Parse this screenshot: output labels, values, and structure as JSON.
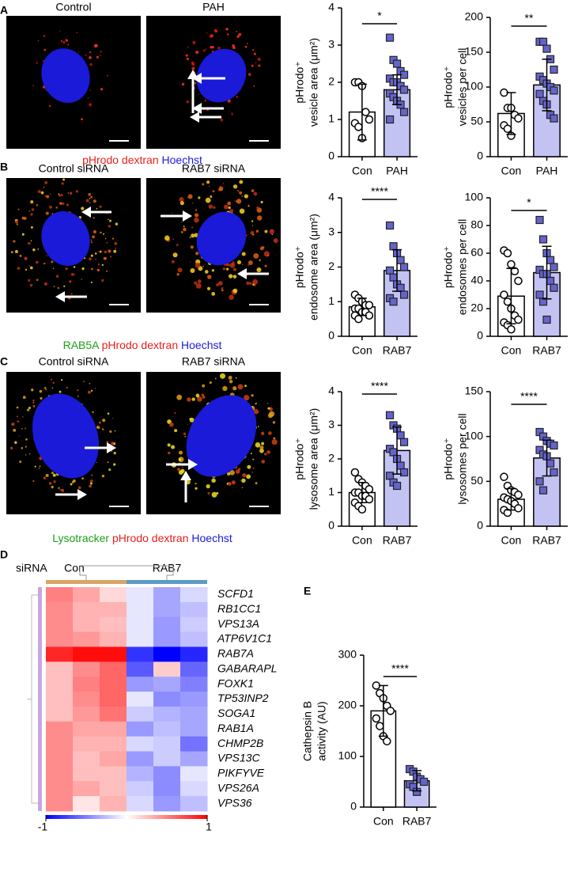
{
  "panels": [
    {
      "label": "A",
      "images": [
        "Control",
        "PAH"
      ],
      "caption": [
        {
          "text": "pHrodo dextran",
          "color": "#e8201c"
        },
        {
          "text": "Hoechst",
          "color": "#1a1ae0"
        }
      ]
    },
    {
      "label": "B",
      "images": [
        "Control siRNA",
        "RAB7 siRNA"
      ],
      "caption": [
        {
          "text": "RAB5A",
          "color": "#1aa01a"
        },
        {
          "text": "pHrodo dextran",
          "color": "#e8201c"
        },
        {
          "text": "Hoechst",
          "color": "#1a1ae0"
        }
      ]
    },
    {
      "label": "C",
      "images": [
        "Control siRNA",
        "RAB7 siRNA"
      ],
      "caption": [
        {
          "text": "Lysotracker",
          "color": "#1aa01a"
        },
        {
          "text": "pHrodo dextran",
          "color": "#e8201c"
        },
        {
          "text": "Hoechst",
          "color": "#1a1ae0"
        }
      ]
    },
    {
      "label": "D"
    },
    {
      "label": "E"
    }
  ],
  "chart_data": [
    {
      "type": "bar",
      "ylabel": [
        "pHrodo⁺",
        "vesicle area (μm²)"
      ],
      "categories": [
        "Con",
        "PAH"
      ],
      "values": [
        1.2,
        1.8
      ],
      "errors": [
        0.75,
        0.4
      ],
      "colors": [
        "#ffffff",
        "#c3c3f3"
      ],
      "markers": [
        "circle",
        "square"
      ],
      "points": [
        [
          2.0,
          2.0,
          1.9,
          1.2,
          1.0,
          0.9,
          0.8,
          0.5
        ],
        [
          3.2,
          2.6,
          2.5,
          2.3,
          2.2,
          2.1,
          2.0,
          2.0,
          1.9,
          1.8,
          1.7,
          1.6,
          1.5,
          1.4,
          1.2,
          1.0
        ]
      ],
      "significance": "*",
      "ylim": [
        0,
        4
      ],
      "yticks": [
        0,
        1,
        2,
        3,
        4
      ]
    },
    {
      "type": "bar",
      "ylabel": [
        "pHrodo⁺",
        "vesicles per cell"
      ],
      "categories": [
        "Con",
        "PAH"
      ],
      "values": [
        62,
        103
      ],
      "errors": [
        30,
        37
      ],
      "colors": [
        "#ffffff",
        "#c3c3f3"
      ],
      "markers": [
        "circle",
        "square"
      ],
      "points": [
        [
          92,
          70,
          70,
          60,
          55,
          45,
          40,
          30
        ],
        [
          165,
          165,
          155,
          140,
          125,
          115,
          110,
          105,
          100,
          95,
          90,
          80,
          75,
          60,
          55
        ]
      ],
      "significance": "**",
      "ylim": [
        0,
        200
      ],
      "yticks": [
        0,
        50,
        100,
        150,
        200
      ]
    },
    {
      "type": "bar",
      "ylabel": [
        "pHrodo⁺",
        "endosome area (μm²)"
      ],
      "categories": [
        "Con",
        "RAB7"
      ],
      "values": [
        0.85,
        1.9
      ],
      "errors": [
        0.25,
        0.6
      ],
      "colors": [
        "#ffffff",
        "#c3c3f3"
      ],
      "markers": [
        "circle",
        "square"
      ],
      "points": [
        [
          1.2,
          1.1,
          1.0,
          0.9,
          0.9,
          0.8,
          0.8,
          0.7,
          0.7,
          0.6,
          0.6,
          0.5
        ],
        [
          3.2,
          2.6,
          2.4,
          2.2,
          2.0,
          1.9,
          1.7,
          1.5,
          1.4,
          1.2,
          1.1,
          1.0
        ]
      ],
      "significance": "****",
      "ylim": [
        0,
        4
      ],
      "yticks": [
        0,
        1,
        2,
        3,
        4
      ]
    },
    {
      "type": "bar",
      "ylabel": [
        "pHrodo⁺",
        "endosomes per cell"
      ],
      "categories": [
        "Con",
        "RAB7"
      ],
      "values": [
        29,
        46
      ],
      "errors": [
        20,
        19
      ],
      "colors": [
        "#ffffff",
        "#c3c3f3"
      ],
      "markers": [
        "circle",
        "square"
      ],
      "points": [
        [
          62,
          60,
          52,
          47,
          40,
          30,
          25,
          20,
          15,
          12,
          10,
          8,
          5
        ],
        [
          84,
          70,
          60,
          55,
          50,
          48,
          45,
          45,
          40,
          35,
          30,
          25,
          12
        ]
      ],
      "significance": "*",
      "ylim": [
        0,
        100
      ],
      "yticks": [
        0,
        20,
        40,
        60,
        80,
        100
      ]
    },
    {
      "type": "bar",
      "ylabel": [
        "pHrodo⁺",
        "lysosome area (μm²)"
      ],
      "categories": [
        "Con",
        "RAB7"
      ],
      "values": [
        1.0,
        2.25
      ],
      "errors": [
        0.3,
        0.7
      ],
      "colors": [
        "#ffffff",
        "#c3c3f3"
      ],
      "markers": [
        "circle",
        "square"
      ],
      "points": [
        [
          1.6,
          1.4,
          1.3,
          1.2,
          1.1,
          1.0,
          1.0,
          0.9,
          0.9,
          0.8,
          0.7,
          0.6,
          0.5
        ],
        [
          3.3,
          3.0,
          2.9,
          2.7,
          2.5,
          2.3,
          2.2,
          2.0,
          1.8,
          1.6,
          1.5,
          1.3,
          1.2
        ]
      ],
      "significance": "****",
      "ylim": [
        0,
        4
      ],
      "yticks": [
        0,
        1,
        2,
        3,
        4
      ]
    },
    {
      "type": "bar",
      "ylabel": [
        "pHrodo⁺",
        "lysosomes per cell"
      ],
      "categories": [
        "Con",
        "RAB7"
      ],
      "values": [
        30,
        76
      ],
      "errors": [
        12,
        20
      ],
      "colors": [
        "#ffffff",
        "#c3c3f3"
      ],
      "markers": [
        "circle",
        "square"
      ],
      "points": [
        [
          55,
          45,
          40,
          38,
          35,
          32,
          30,
          28,
          25,
          20,
          18,
          15
        ],
        [
          105,
          100,
          95,
          92,
          90,
          85,
          80,
          78,
          70,
          60,
          50,
          40
        ]
      ],
      "significance": "****",
      "ylim": [
        0,
        150
      ],
      "yticks": [
        0,
        50,
        100,
        150
      ]
    },
    {
      "type": "heatmap",
      "group_title": "siRNA",
      "groups": [
        "Con",
        "RAB7"
      ],
      "group_colors": [
        "#d9a465",
        "#5b9bc8"
      ],
      "rows": [
        "SCFD1",
        "RB1CC1",
        "VPS13A",
        "ATP6V1C1",
        "RAB7A",
        "GABARAPL",
        "FOXK1",
        "TP53INP2",
        "SOGA1",
        "RAB1A",
        "CHMP2B",
        "VPS13C",
        "PIKFYVE",
        "VPS26A",
        "VPS36"
      ],
      "values": [
        [
          0.5,
          0.35,
          0.15,
          -0.1,
          -0.35,
          -0.15
        ],
        [
          0.45,
          0.3,
          0.3,
          -0.1,
          -0.35,
          -0.25
        ],
        [
          0.45,
          0.3,
          0.25,
          -0.1,
          -0.4,
          -0.2
        ],
        [
          0.45,
          0.4,
          0.3,
          -0.1,
          -0.4,
          -0.25
        ],
        [
          0.85,
          0.95,
          0.95,
          -0.8,
          -1,
          -0.85
        ],
        [
          0.25,
          0.45,
          0.6,
          -0.65,
          0.2,
          -0.6
        ],
        [
          0.25,
          0.5,
          0.6,
          -0.4,
          -0.35,
          -0.5
        ],
        [
          0.25,
          0.45,
          0.6,
          -0.1,
          -0.45,
          -0.4
        ],
        [
          0.25,
          0.4,
          0.55,
          -0.2,
          -0.3,
          -0.35
        ],
        [
          0.45,
          0.35,
          0.35,
          -0.4,
          -0.25,
          -0.35
        ],
        [
          0.45,
          0.3,
          0.3,
          -0.15,
          -0.2,
          -0.55
        ],
        [
          0.45,
          0.25,
          0.35,
          -0.4,
          -0.2,
          -0.35
        ],
        [
          0.45,
          0.25,
          0.25,
          -0.3,
          -0.45,
          -0.1
        ],
        [
          0.45,
          0.35,
          0.25,
          -0.2,
          -0.45,
          -0.15
        ],
        [
          0.45,
          0.1,
          0.3,
          -0.15,
          -0.4,
          -0.25
        ]
      ],
      "zlim": [
        -1,
        1
      ],
      "zticks": [
        -1,
        1
      ]
    },
    {
      "type": "bar",
      "ylabel": [
        "Cathepsin B",
        "activity (AU)"
      ],
      "categories": [
        "Con",
        "RAB7"
      ],
      "values": [
        190,
        52
      ],
      "errors": [
        50,
        20
      ],
      "colors": [
        "#ffffff",
        "#c3c3f3"
      ],
      "markers": [
        "circle",
        "square"
      ],
      "points": [
        [
          240,
          225,
          215,
          200,
          190,
          175,
          160,
          140,
          130
        ],
        [
          75,
          70,
          60,
          55,
          50,
          45,
          40,
          30
        ]
      ],
      "significance": "****",
      "ylim": [
        0,
        300
      ],
      "yticks": [
        0,
        100,
        200,
        300
      ]
    }
  ]
}
